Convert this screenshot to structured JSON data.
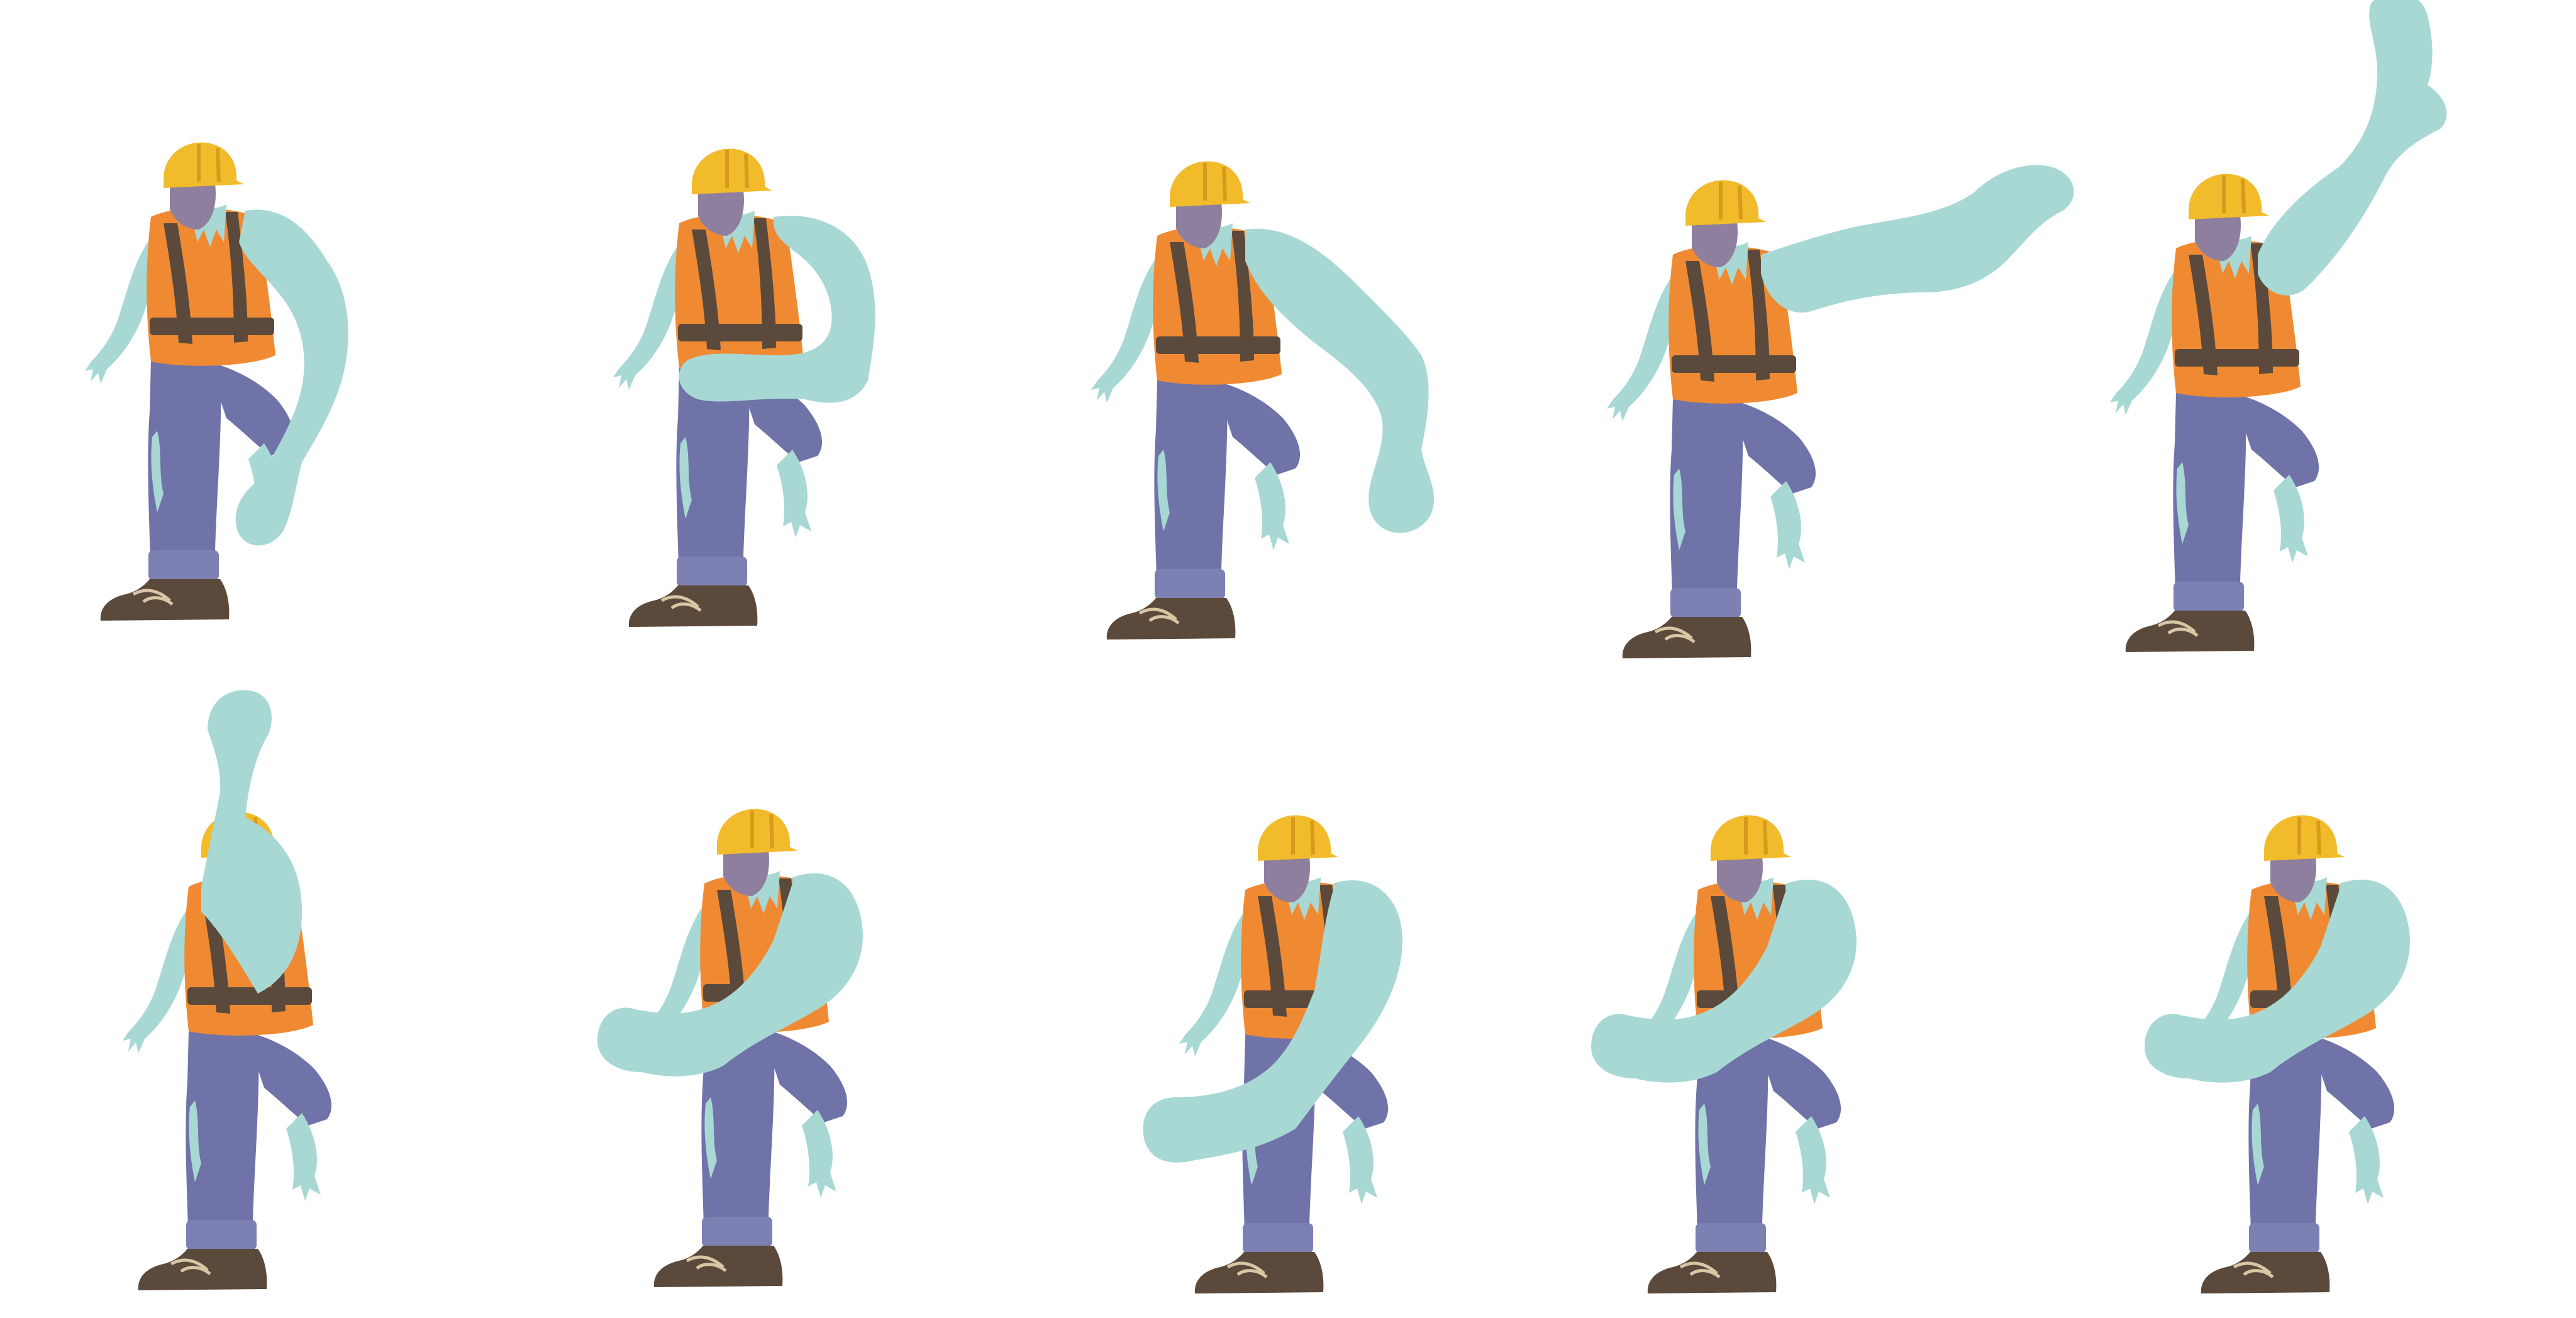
{
  "sprite_sheet": {
    "background": "#ffffff",
    "rows": 2,
    "columns": 5,
    "frame_count": 10,
    "frames": [
      {
        "index": 1,
        "arm_pose": "hanging-down-forward"
      },
      {
        "index": 2,
        "arm_pose": "bent-in-front"
      },
      {
        "index": 3,
        "arm_pose": "swinging-out-down"
      },
      {
        "index": 4,
        "arm_pose": "raised-right"
      },
      {
        "index": 5,
        "arm_pose": "raised-high"
      },
      {
        "index": 6,
        "arm_pose": "straight-up"
      },
      {
        "index": 7,
        "arm_pose": "across-body-left"
      },
      {
        "index": 8,
        "arm_pose": "across-body-low-left"
      },
      {
        "index": 9,
        "arm_pose": "across-body-left"
      },
      {
        "index": 10,
        "arm_pose": "across-body-left"
      }
    ]
  },
  "palette": {
    "skin": "#a7d8d4",
    "skin_shade": "#89bdb9",
    "helmet": "#f2bb2b",
    "helmet_shade": "#d79a1c",
    "face": "#8f7f9e",
    "vest": "#f08a32",
    "vest_stripe": "#5b4a3c",
    "jeans": "#6f73a8",
    "jeans_cuff": "#7c80b3",
    "boot": "#5b4a3c",
    "lace": "#d8c7a5",
    "line": "#4f6f6c"
  }
}
